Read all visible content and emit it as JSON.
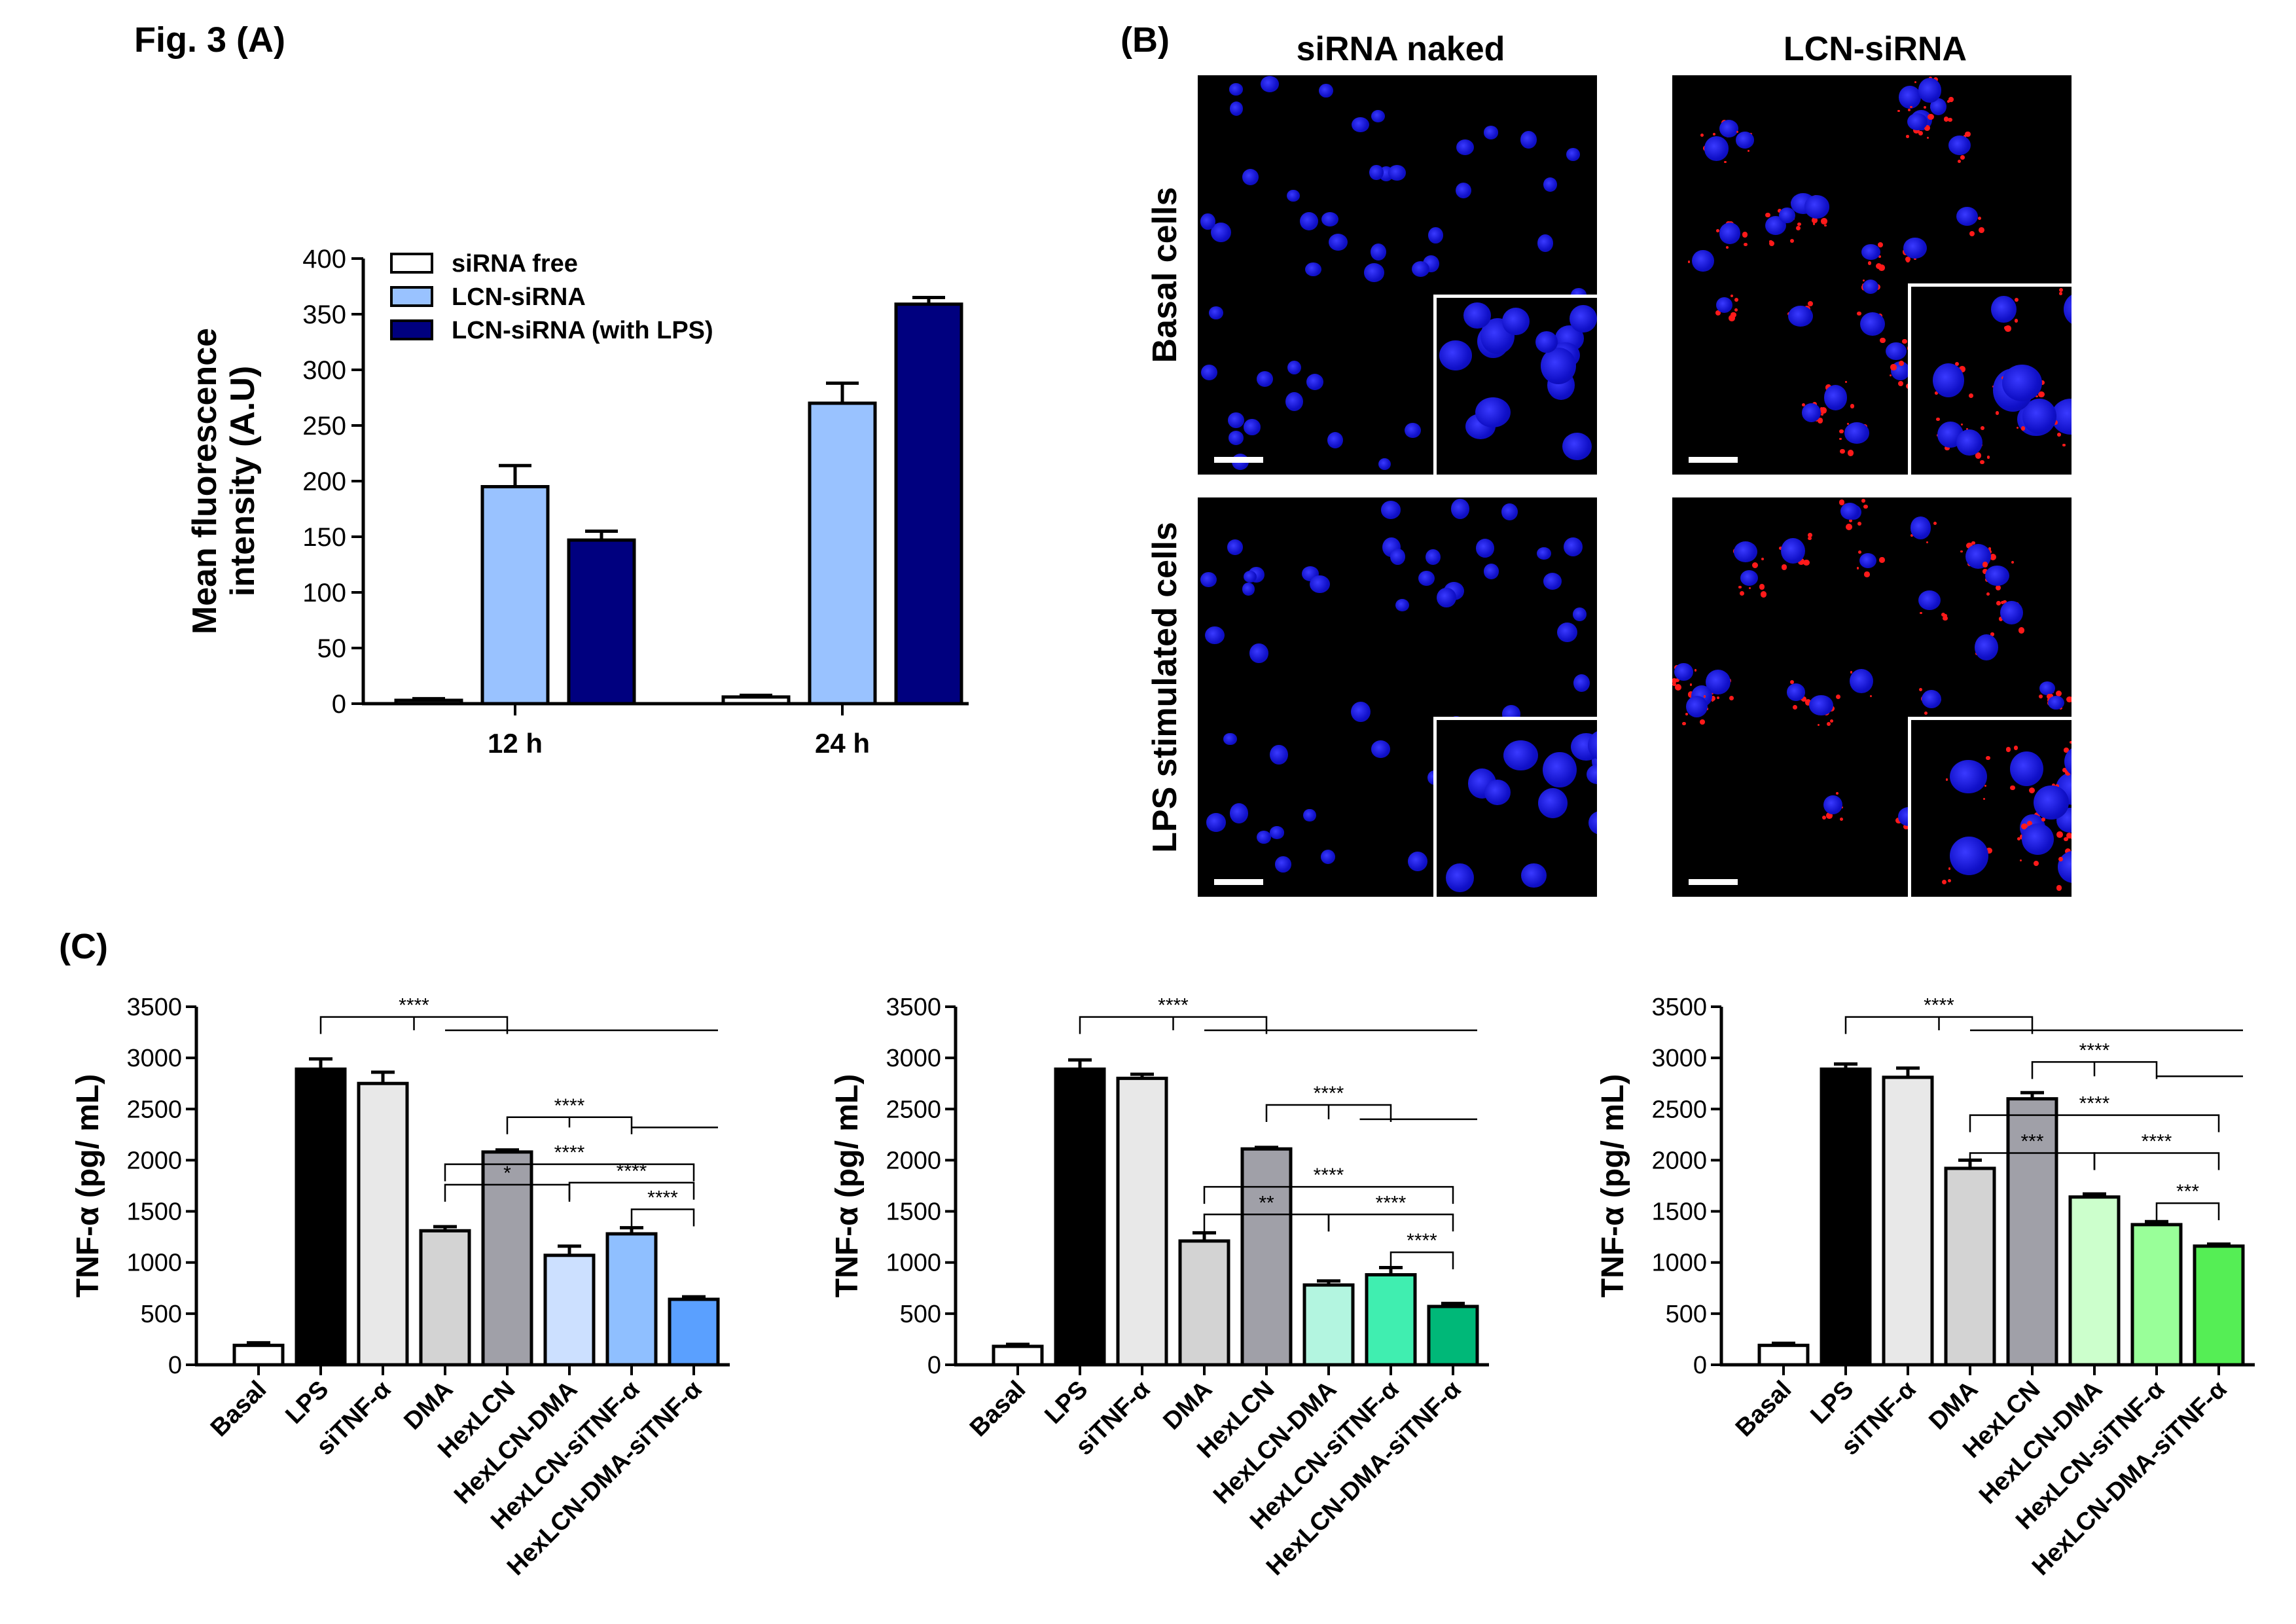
{
  "figure_title": "Fig. 3 (A)",
  "panel_b_label": "(B)",
  "panel_c_label": "(C)",
  "micro": {
    "col_labels": [
      "siRNA naked",
      "LCN-siRNA"
    ],
    "row_labels": [
      "Basal cells",
      "LPS stimulated cells"
    ]
  },
  "chart_data": [
    {
      "id": "A",
      "type": "bar",
      "categories": [
        "12 h",
        "24 h"
      ],
      "series": [
        {
          "name": "siRNA free",
          "values": [
            3,
            6
          ],
          "errors": [
            1.5,
            1.5
          ],
          "color": "#ffffff"
        },
        {
          "name": "LCN-siRNA",
          "values": [
            195,
            270
          ],
          "errors": [
            19,
            18
          ],
          "color": "#99c2ff"
        },
        {
          "name": "LCN-siRNA (with LPS)",
          "values": [
            147,
            359
          ],
          "errors": [
            8,
            6
          ],
          "color": "#00007f"
        }
      ],
      "ylabel_lines": [
        "Mean fluorescence",
        "intensity (A.U)"
      ],
      "ylim": [
        0,
        400
      ],
      "yticks": [
        0,
        50,
        100,
        150,
        200,
        250,
        300,
        350,
        400
      ],
      "legend": "top-left"
    },
    {
      "id": "C1",
      "type": "bar",
      "categories": [
        "Basal",
        "LPS",
        "siTNF-α",
        "DMA",
        "HexLCN",
        "HexLCN-DMA",
        "HexLCN-siTNF-α",
        "HexLCN-DMA-siTNF-α"
      ],
      "values": [
        190,
        2890,
        2750,
        1310,
        2080,
        1070,
        1280,
        640
      ],
      "errors": [
        25,
        100,
        110,
        40,
        20,
        90,
        60,
        25
      ],
      "colors": [
        "#ffffff",
        "#000000",
        "#e8e8e8",
        "#d3d3d3",
        "#a0a0a8",
        "#cce0ff",
        "#8fbfff",
        "#5aa0ff"
      ],
      "ylabel": "TNF-α (pg/ mL)",
      "ylim": [
        0,
        3500
      ],
      "yticks": [
        0,
        500,
        1000,
        1500,
        2000,
        2500,
        3000,
        3500
      ],
      "brackets": [
        {
          "from": 1,
          "to": 4,
          "y": 3400,
          "label": "****",
          "line_from": 3,
          "line_to": 7,
          "line_y": 3270
        },
        {
          "from": 4,
          "to": 6,
          "y": 2420,
          "label": "****",
          "line_from": 6,
          "line_to": 7,
          "line_y": 2320
        },
        {
          "from": 3,
          "to": 7,
          "y": 1960,
          "label": "****"
        },
        {
          "from": 3,
          "to": 5,
          "y": 1760,
          "label": "*"
        },
        {
          "from": 5,
          "to": 7,
          "y": 1780,
          "label": "****"
        },
        {
          "from": 6,
          "to": 7,
          "y": 1520,
          "label": "****"
        }
      ]
    },
    {
      "id": "C2",
      "type": "bar",
      "categories": [
        "Basal",
        "LPS",
        "siTNF-α",
        "DMA",
        "HexLCN",
        "HexLCN-DMA",
        "HexLCN-siTNF-α",
        "HexLCN-DMA-siTNF-α"
      ],
      "values": [
        180,
        2890,
        2800,
        1210,
        2110,
        780,
        880,
        570
      ],
      "errors": [
        20,
        90,
        40,
        80,
        15,
        40,
        70,
        30
      ],
      "colors": [
        "#ffffff",
        "#000000",
        "#e8e8e8",
        "#d3d3d3",
        "#a0a0a8",
        "#b3f5e0",
        "#40eeb0",
        "#00b878"
      ],
      "ylabel": "TNF-α (pg/ mL)",
      "ylim": [
        0,
        3500
      ],
      "yticks": [
        0,
        500,
        1000,
        1500,
        2000,
        2500,
        3000,
        3500
      ],
      "brackets": [
        {
          "from": 1,
          "to": 4,
          "y": 3400,
          "label": "****",
          "line_from": 3,
          "line_to": 7,
          "line_y": 3270
        },
        {
          "from": 4,
          "to": 6,
          "y": 2540,
          "label": "****",
          "line_from": 5.5,
          "line_to": 7,
          "line_y": 2400
        },
        {
          "from": 3,
          "to": 7,
          "y": 1740,
          "label": "****"
        },
        {
          "from": 3,
          "to": 5,
          "y": 1470,
          "label": "**"
        },
        {
          "from": 5,
          "to": 7,
          "y": 1470,
          "label": "****"
        },
        {
          "from": 6,
          "to": 7,
          "y": 1100,
          "label": "****"
        }
      ]
    },
    {
      "id": "C3",
      "type": "bar",
      "categories": [
        "Basal",
        "LPS",
        "siTNF-α",
        "DMA",
        "HexLCN",
        "HexLCN-DMA",
        "HexLCN-siTNF-α",
        "HexLCN-DMA-siTNF-α"
      ],
      "values": [
        190,
        2890,
        2810,
        1920,
        2600,
        1640,
        1370,
        1160
      ],
      "errors": [
        20,
        50,
        90,
        80,
        60,
        30,
        30,
        20
      ],
      "colors": [
        "#ffffff",
        "#000000",
        "#e8e8e8",
        "#d3d3d3",
        "#a0a0a8",
        "#ccffcc",
        "#99ff99",
        "#55ee55"
      ],
      "ylabel": "TNF-α (pg/ mL)",
      "ylim": [
        0,
        3500
      ],
      "yticks": [
        0,
        500,
        1000,
        1500,
        2000,
        2500,
        3000,
        3500
      ],
      "brackets": [
        {
          "from": 1,
          "to": 4,
          "y": 3400,
          "label": "****",
          "line_from": 3,
          "line_to": 7,
          "line_y": 3270
        },
        {
          "from": 4,
          "to": 6,
          "y": 2960,
          "label": "****",
          "line_from": 6,
          "line_to": 7,
          "line_y": 2820
        },
        {
          "from": 3,
          "to": 7,
          "y": 2440,
          "label": "****"
        },
        {
          "from": 3,
          "to": 5,
          "y": 2070,
          "label": "***"
        },
        {
          "from": 5,
          "to": 7,
          "y": 2070,
          "label": "****"
        },
        {
          "from": 6,
          "to": 7,
          "y": 1580,
          "label": "***"
        }
      ]
    }
  ]
}
